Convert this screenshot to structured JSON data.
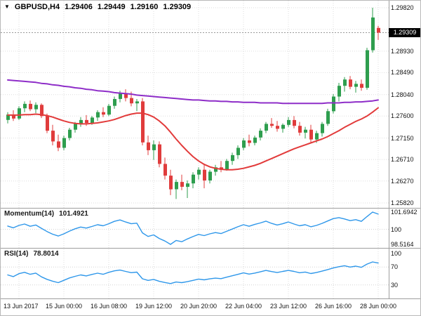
{
  "header": {
    "marker": "▼",
    "symbol": "GBPUSD,H4",
    "open": "1.29406",
    "high": "1.29449",
    "low": "1.29160",
    "close": "1.29309"
  },
  "price_axis": {
    "current_price": "1.29309",
    "current_price_value": 1.29309,
    "labels": [
      {
        "text": "1.29820",
        "value": 1.2982
      },
      {
        "text": "1.28930",
        "value": 1.2893
      },
      {
        "text": "1.28490",
        "value": 1.2849
      },
      {
        "text": "1.28040",
        "value": 1.2804
      },
      {
        "text": "1.27600",
        "value": 1.276
      },
      {
        "text": "1.27150",
        "value": 1.2715
      },
      {
        "text": "1.26710",
        "value": 1.2671
      },
      {
        "text": "1.26270",
        "value": 1.2627
      },
      {
        "text": "1.25820",
        "value": 1.2582
      }
    ],
    "gridlines": [
      1.2982,
      1.29376,
      1.2893,
      1.2849,
      1.2804,
      1.276,
      1.2715,
      1.2671,
      1.2627,
      1.2582
    ]
  },
  "time_axis": {
    "labels": [
      {
        "text": "13 Jun 2017",
        "index": 2
      },
      {
        "text": "15 Jun 00:00",
        "index": 10
      },
      {
        "text": "16 Jun 08:00",
        "index": 18
      },
      {
        "text": "19 Jun 12:00",
        "index": 26
      },
      {
        "text": "20 Jun 20:00",
        "index": 34
      },
      {
        "text": "22 Jun 04:00",
        "index": 42
      },
      {
        "text": "23 Jun 12:00",
        "index": 50
      },
      {
        "text": "26 Jun 16:00",
        "index": 58
      },
      {
        "text": "28 Jun 00:00",
        "index": 66
      }
    ]
  },
  "indicators": {
    "momentum": {
      "label": "Momentum(14)",
      "value": "101.4921",
      "max": 101.6942,
      "min": 98.5164,
      "axis": [
        {
          "text": "101.6942",
          "value": 101.6942
        },
        {
          "text": "100",
          "value": 100
        },
        {
          "text": "98.5164",
          "value": 98.5164
        }
      ]
    },
    "rsi": {
      "label": "RSI(14)",
      "value": "78.8014",
      "levels": [
        70,
        30
      ],
      "axis": [
        {
          "text": "100",
          "value": 100
        },
        {
          "text": "70",
          "value": 70
        },
        {
          "text": "30",
          "value": 30
        }
      ]
    }
  },
  "chart_data": {
    "type": "candlestick",
    "title": "GBPUSD,H4",
    "symbol": "GBPUSD",
    "timeframe": "H4",
    "y_range": [
      1.2582,
      1.2982
    ],
    "ohlc_current": {
      "open": 1.29406,
      "high": 1.29449,
      "low": 1.2916,
      "close": 1.29309
    },
    "colors": {
      "up": "#2e9e4e",
      "down": "#e03c3c",
      "ma_slow": "#8e2dc8",
      "ma_fast": "#e23b3b",
      "indicator": "#2e97ea"
    },
    "candles": [
      [
        1.2752,
        1.2768,
        1.2745,
        1.2763
      ],
      [
        1.2763,
        1.2772,
        1.275,
        1.2755
      ],
      [
        1.2755,
        1.278,
        1.2752,
        1.2776
      ],
      [
        1.2776,
        1.279,
        1.2768,
        1.2785
      ],
      [
        1.2785,
        1.2792,
        1.277,
        1.2774
      ],
      [
        1.2774,
        1.2788,
        1.2766,
        1.2783
      ],
      [
        1.2783,
        1.2786,
        1.2756,
        1.276
      ],
      [
        1.276,
        1.2765,
        1.2725,
        1.273
      ],
      [
        1.273,
        1.2742,
        1.27,
        1.2708
      ],
      [
        1.2708,
        1.2722,
        1.2688,
        1.2695
      ],
      [
        1.2695,
        1.272,
        1.269,
        1.2715
      ],
      [
        1.2715,
        1.2736,
        1.271,
        1.2732
      ],
      [
        1.2732,
        1.2748,
        1.2726,
        1.2744
      ],
      [
        1.2744,
        1.2758,
        1.2738,
        1.2752
      ],
      [
        1.2752,
        1.2762,
        1.274,
        1.2746
      ],
      [
        1.2746,
        1.276,
        1.2742,
        1.2757
      ],
      [
        1.2757,
        1.2772,
        1.275,
        1.2768
      ],
      [
        1.2768,
        1.2778,
        1.2758,
        1.2763
      ],
      [
        1.2763,
        1.2785,
        1.276,
        1.2781
      ],
      [
        1.2781,
        1.28,
        1.2775,
        1.2795
      ],
      [
        1.2795,
        1.2812,
        1.2788,
        1.2806
      ],
      [
        1.2806,
        1.2815,
        1.279,
        1.2797
      ],
      [
        1.2797,
        1.281,
        1.278,
        1.2786
      ],
      [
        1.2786,
        1.2795,
        1.277,
        1.279
      ],
      [
        1.279,
        1.2797,
        1.27,
        1.2706
      ],
      [
        1.2706,
        1.272,
        1.268,
        1.269
      ],
      [
        1.269,
        1.271,
        1.267,
        1.2702
      ],
      [
        1.2702,
        1.2708,
        1.2655,
        1.2662
      ],
      [
        1.2662,
        1.2675,
        1.263,
        1.2638
      ],
      [
        1.2638,
        1.265,
        1.2598,
        1.261
      ],
      [
        1.261,
        1.263,
        1.259,
        1.2625
      ],
      [
        1.2625,
        1.264,
        1.2608,
        1.2615
      ],
      [
        1.2615,
        1.2628,
        1.2592,
        1.2622
      ],
      [
        1.2622,
        1.2645,
        1.2612,
        1.264
      ],
      [
        1.264,
        1.2655,
        1.263,
        1.265
      ],
      [
        1.265,
        1.2662,
        1.2612,
        1.2628
      ],
      [
        1.2628,
        1.265,
        1.2622,
        1.2646
      ],
      [
        1.2646,
        1.266,
        1.2638,
        1.2655
      ],
      [
        1.2655,
        1.2668,
        1.2645,
        1.265
      ],
      [
        1.265,
        1.2672,
        1.2648,
        1.2668
      ],
      [
        1.2668,
        1.2685,
        1.266,
        1.268
      ],
      [
        1.268,
        1.27,
        1.2672,
        1.2695
      ],
      [
        1.2695,
        1.2715,
        1.269,
        1.271
      ],
      [
        1.271,
        1.2722,
        1.2698,
        1.2705
      ],
      [
        1.2705,
        1.272,
        1.27,
        1.2716
      ],
      [
        1.2716,
        1.2735,
        1.271,
        1.273
      ],
      [
        1.273,
        1.2748,
        1.2725,
        1.2744
      ],
      [
        1.2744,
        1.2756,
        1.2736,
        1.274
      ],
      [
        1.274,
        1.275,
        1.2728,
        1.2734
      ],
      [
        1.2734,
        1.2745,
        1.2726,
        1.2742
      ],
      [
        1.2742,
        1.2758,
        1.2738,
        1.2752
      ],
      [
        1.2752,
        1.276,
        1.2735,
        1.274
      ],
      [
        1.274,
        1.2748,
        1.272,
        1.2726
      ],
      [
        1.2726,
        1.2738,
        1.2714,
        1.2732
      ],
      [
        1.2732,
        1.2742,
        1.2706,
        1.2712
      ],
      [
        1.2712,
        1.273,
        1.2705,
        1.2725
      ],
      [
        1.2725,
        1.2748,
        1.2718,
        1.2744
      ],
      [
        1.2744,
        1.2775,
        1.274,
        1.277
      ],
      [
        1.277,
        1.2805,
        1.2765,
        1.28
      ],
      [
        1.28,
        1.2828,
        1.279,
        1.2822
      ],
      [
        1.2822,
        1.284,
        1.281,
        1.2835
      ],
      [
        1.2835,
        1.2842,
        1.2815,
        1.282
      ],
      [
        1.282,
        1.2832,
        1.2808,
        1.2826
      ],
      [
        1.2826,
        1.2835,
        1.2812,
        1.2818
      ],
      [
        1.2818,
        1.29,
        1.2814,
        1.2895
      ],
      [
        1.2895,
        1.2982,
        1.289,
        1.2962
      ],
      [
        1.29406,
        1.29449,
        1.2916,
        1.29309
      ]
    ],
    "series": [
      {
        "name": "ma-slow",
        "color": "#8e2dc8",
        "values": [
          1.2834,
          1.2833,
          1.2832,
          1.2831,
          1.283,
          1.2829,
          1.2827,
          1.2826,
          1.2824,
          1.2823,
          1.2821,
          1.282,
          1.2818,
          1.2817,
          1.2815,
          1.2814,
          1.2812,
          1.2811,
          1.281,
          1.2808,
          1.2807,
          1.2806,
          1.2805,
          1.2803,
          1.2802,
          1.2801,
          1.28,
          1.2799,
          1.2798,
          1.2797,
          1.2796,
          1.2795,
          1.2794,
          1.2793,
          1.2793,
          1.2792,
          1.2791,
          1.2791,
          1.279,
          1.279,
          1.2789,
          1.2789,
          1.2788,
          1.2788,
          1.2788,
          1.2787,
          1.2787,
          1.2787,
          1.2787,
          1.2786,
          1.2786,
          1.2786,
          1.2786,
          1.2786,
          1.2786,
          1.2786,
          1.2786,
          1.2787,
          1.2787,
          1.2787,
          1.2788,
          1.2788,
          1.2789,
          1.2789,
          1.279,
          1.2791,
          1.2793
        ]
      },
      {
        "name": "ma-fast",
        "color": "#e23b3b",
        "values": [
          1.2762,
          1.2762,
          1.2762,
          1.2763,
          1.2763,
          1.2764,
          1.2763,
          1.2761,
          1.2758,
          1.2754,
          1.275,
          1.2747,
          1.2745,
          1.2744,
          1.2744,
          1.2745,
          1.2746,
          1.2748,
          1.275,
          1.2753,
          1.2757,
          1.2761,
          1.2764,
          1.2766,
          1.2766,
          1.2763,
          1.2758,
          1.275,
          1.274,
          1.2727,
          1.2713,
          1.27,
          1.2688,
          1.2677,
          1.2668,
          1.2661,
          1.2656,
          1.2653,
          1.2651,
          1.265,
          1.265,
          1.2651,
          1.2653,
          1.2656,
          1.2659,
          1.2663,
          1.2668,
          1.2673,
          1.2678,
          1.2683,
          1.2688,
          1.2693,
          1.2697,
          1.2701,
          1.2705,
          1.2709,
          1.2713,
          1.2718,
          1.2724,
          1.273,
          1.2737,
          1.2743,
          1.2749,
          1.2754,
          1.276,
          1.2768,
          1.2777
        ]
      },
      {
        "name": "momentum",
        "color": "#2e97ea",
        "values": [
          100.32,
          100.15,
          100.38,
          100.52,
          100.3,
          100.42,
          100.1,
          99.78,
          99.52,
          99.34,
          99.55,
          99.82,
          100.05,
          100.22,
          100.12,
          100.28,
          100.45,
          100.35,
          100.55,
          100.78,
          100.92,
          100.72,
          100.55,
          100.6,
          99.65,
          99.3,
          99.45,
          99.1,
          98.85,
          98.5164,
          98.9,
          98.78,
          99.05,
          99.28,
          99.5,
          99.38,
          99.55,
          99.68,
          99.58,
          99.8,
          100.02,
          100.25,
          100.45,
          100.3,
          100.48,
          100.62,
          100.8,
          100.58,
          100.42,
          100.55,
          100.72,
          100.52,
          100.35,
          100.45,
          100.25,
          100.38,
          100.58,
          100.82,
          101.05,
          101.15,
          101.02,
          100.85,
          100.95,
          100.78,
          101.25,
          101.6942,
          101.4921
        ]
      },
      {
        "name": "rsi",
        "color": "#2e97ea",
        "values": [
          52.4,
          48.6,
          55.2,
          58.1,
          53.8,
          56.4,
          48.2,
          42.5,
          38.4,
          35.2,
          40.3,
          45.6,
          49.2,
          52.3,
          50.1,
          53.4,
          56.2,
          53.8,
          58.2,
          61.4,
          63.2,
          60.1,
          57.4,
          58.6,
          43.8,
          40.2,
          42.4,
          38.1,
          35.4,
          33.2,
          36.5,
          35.1,
          37.4,
          40.2,
          43.1,
          41.4,
          43.6,
          45.2,
          44.1,
          47.3,
          50.4,
          53.6,
          56.8,
          54.2,
          56.4,
          59.2,
          62.3,
          59.8,
          57.6,
          60.2,
          62.4,
          60.1,
          57.2,
          58.8,
          55.4,
          57.6,
          60.8,
          64.2,
          67.8,
          70.6,
          72.8,
          69.9,
          71.8,
          69.2,
          76.4,
          81.2,
          78.8014
        ]
      }
    ]
  }
}
